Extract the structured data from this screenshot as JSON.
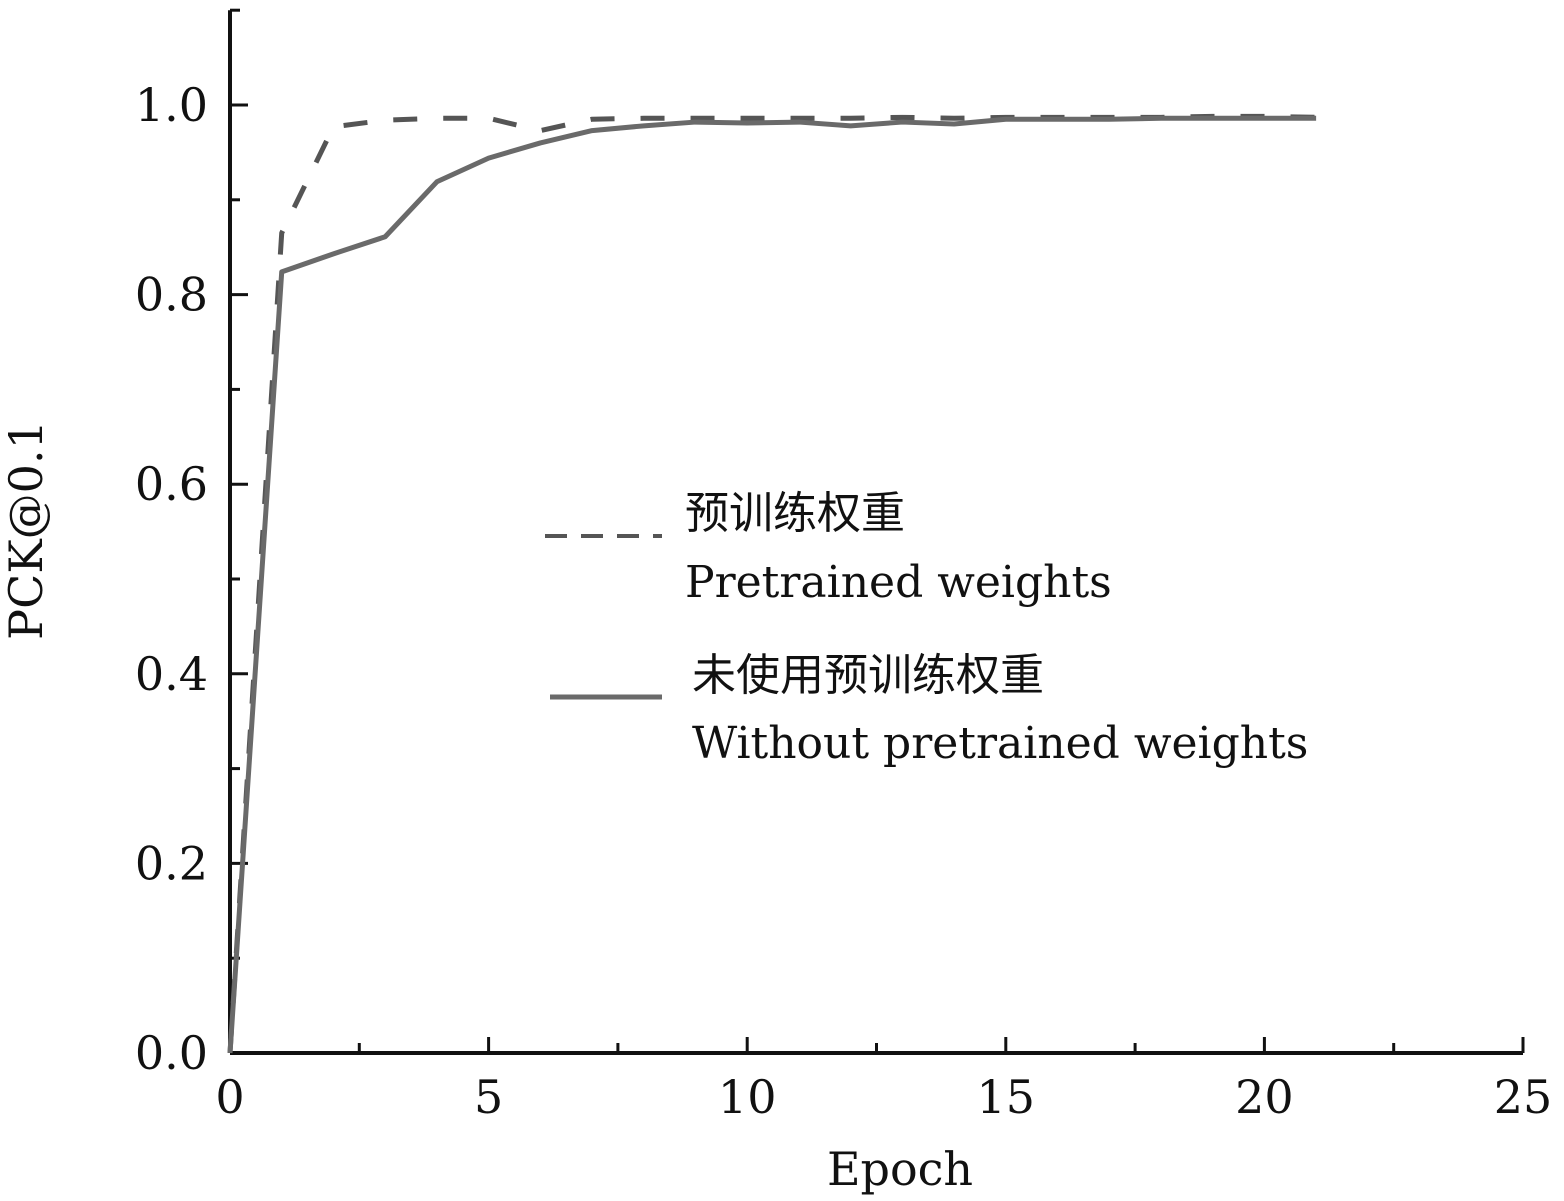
{
  "chart_data": {
    "type": "line",
    "title": "",
    "xlabel": "Epoch",
    "ylabel": "PCK@0.1",
    "xlim": [
      0,
      25
    ],
    "ylim": [
      0,
      1.1
    ],
    "xticks": [
      "0",
      "5",
      "10",
      "15",
      "20",
      "25"
    ],
    "yticks": [
      "0.0",
      "0.2",
      "0.4",
      "0.6",
      "0.8",
      "1.0"
    ],
    "grid": false,
    "legend_position": "center-right",
    "series": [
      {
        "name_cn": "预训练权重",
        "name_en": "Pretrained weights",
        "style": "dashed",
        "color": "#555555",
        "x": [
          0,
          1,
          2,
          3,
          4,
          5,
          6,
          7,
          8,
          9,
          10,
          11,
          12,
          13,
          14,
          15,
          16,
          17,
          18,
          19,
          20,
          21
        ],
        "y": [
          0,
          0.865,
          0.977,
          0.984,
          0.986,
          0.986,
          0.973,
          0.985,
          0.986,
          0.986,
          0.986,
          0.986,
          0.986,
          0.987,
          0.986,
          0.987,
          0.987,
          0.987,
          0.987,
          0.988,
          0.988,
          0.987
        ]
      },
      {
        "name_cn": "未使用预训练权重",
        "name_en": "Without pretrained weights",
        "style": "solid",
        "color": "#6a6a6a",
        "x": [
          0,
          1,
          2,
          3,
          4,
          5,
          6,
          7,
          8,
          9,
          10,
          11,
          12,
          13,
          14,
          15,
          16,
          17,
          18,
          19,
          20,
          21
        ],
        "y": [
          0,
          0.824,
          0.843,
          0.861,
          0.919,
          0.944,
          0.96,
          0.973,
          0.978,
          0.982,
          0.981,
          0.982,
          0.978,
          0.982,
          0.98,
          0.985,
          0.985,
          0.985,
          0.986,
          0.986,
          0.986,
          0.986
        ]
      }
    ]
  }
}
